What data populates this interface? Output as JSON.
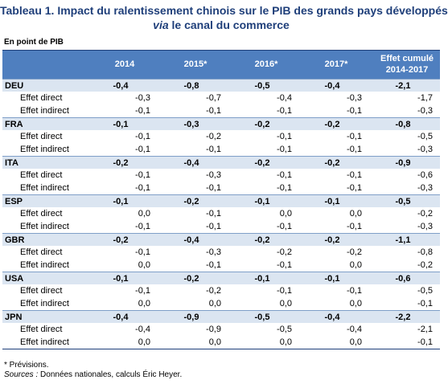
{
  "title_line1": "Tableau 1. Impact du ralentissement chinois sur le PIB des grands pays développés",
  "title_line2_italic": "via",
  "title_line2_rest": "le canal du commerce",
  "unit": "En point de PIB",
  "table": {
    "columns": [
      "2014",
      "2015*",
      "2016*",
      "2017*",
      [
        "Effet cumulé",
        "2014-2017"
      ]
    ],
    "groups": [
      {
        "country": "DEU",
        "values": [
          "-0,4",
          "-0,8",
          "-0,5",
          "-0,4",
          "-2,1"
        ],
        "rows": [
          {
            "label": "Effet direct",
            "values": [
              "-0,3",
              "-0,7",
              "-0,4",
              "-0,3",
              "-1,7"
            ]
          },
          {
            "label": "Effet indirect",
            "values": [
              "-0,1",
              "-0,1",
              "-0,1",
              "-0,1",
              "-0,3"
            ]
          }
        ]
      },
      {
        "country": "FRA",
        "values": [
          "-0,1",
          "-0,3",
          "-0,2",
          "-0,2",
          "-0,8"
        ],
        "rows": [
          {
            "label": "Effet direct",
            "values": [
              "-0,1",
              "-0,2",
              "-0,1",
              "-0,1",
              "-0,5"
            ]
          },
          {
            "label": "Effet indirect",
            "values": [
              "-0,1",
              "-0,1",
              "-0,1",
              "-0,1",
              "-0,3"
            ]
          }
        ]
      },
      {
        "country": "ITA",
        "values": [
          "-0,2",
          "-0,4",
          "-0,2",
          "-0,2",
          "-0,9"
        ],
        "rows": [
          {
            "label": "Effet direct",
            "values": [
              "-0,1",
              "-0,3",
              "-0,1",
              "-0,1",
              "-0,6"
            ]
          },
          {
            "label": "Effet indirect",
            "values": [
              "-0,1",
              "-0,1",
              "-0,1",
              "-0,1",
              "-0,3"
            ]
          }
        ]
      },
      {
        "country": "ESP",
        "values": [
          "-0,1",
          "-0,2",
          "-0,1",
          "-0,1",
          "-0,5"
        ],
        "rows": [
          {
            "label": "Effet direct",
            "values": [
              "0,0",
              "-0,1",
              "0,0",
              "0,0",
              "-0,2"
            ]
          },
          {
            "label": "Effet indirect",
            "values": [
              "-0,1",
              "-0,1",
              "-0,1",
              "-0,1",
              "-0,3"
            ]
          }
        ]
      },
      {
        "country": "GBR",
        "values": [
          "-0,2",
          "-0,4",
          "-0,2",
          "-0,2",
          "-1,1"
        ],
        "rows": [
          {
            "label": "Effet direct",
            "values": [
              "-0,1",
              "-0,3",
              "-0,2",
              "-0,2",
              "-0,8"
            ]
          },
          {
            "label": "Effet indirect",
            "values": [
              "0,0",
              "-0,1",
              "-0,1",
              "0,0",
              "-0,2"
            ]
          }
        ]
      },
      {
        "country": "USA",
        "values": [
          "-0,1",
          "-0,2",
          "-0,1",
          "-0,1",
          "-0,6"
        ],
        "rows": [
          {
            "label": "Effet direct",
            "values": [
              "-0,1",
              "-0,2",
              "-0,1",
              "-0,1",
              "-0,5"
            ]
          },
          {
            "label": "Effet indirect",
            "values": [
              "0,0",
              "0,0",
              "0,0",
              "0,0",
              "-0,1"
            ]
          }
        ]
      },
      {
        "country": "JPN",
        "values": [
          "-0,4",
          "-0,9",
          "-0,5",
          "-0,4",
          "-2,2"
        ],
        "rows": [
          {
            "label": "Effet direct",
            "values": [
              "-0,4",
              "-0,9",
              "-0,5",
              "-0,4",
              "-2,1"
            ]
          },
          {
            "label": "Effet indirect",
            "values": [
              "0,0",
              "0,0",
              "0,0",
              "0,0",
              "-0,1"
            ]
          }
        ]
      }
    ]
  },
  "footnote": "* Prévisions.",
  "sources_label": "Sources :",
  "sources_text": "Données nationales, calculs Éric Heyer."
}
